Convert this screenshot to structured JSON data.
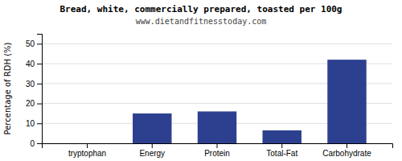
{
  "chart_data": {
    "type": "bar",
    "title": "Bread, white, commercially prepared, toasted per 100g",
    "subtitle": "www.dietandfitnesstoday.com",
    "categories": [
      "tryptophan",
      "Energy",
      "Protein",
      "Total-Fat",
      "Carbohydrate"
    ],
    "values": [
      0,
      15,
      16,
      6.5,
      42
    ],
    "color": "#2d4090",
    "ylabel": "Percentage of RDH (%)",
    "ylim": [
      0,
      55
    ],
    "yticks": [
      0,
      10,
      20,
      30,
      40,
      50
    ],
    "grid": true
  }
}
